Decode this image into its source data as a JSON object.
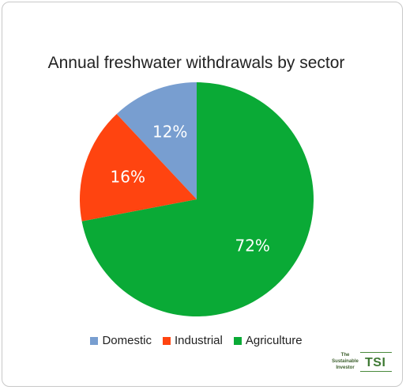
{
  "chart_data": {
    "type": "pie",
    "title": "Annual freshwater withdrawals by sector",
    "slices": [
      {
        "name": "Domestic",
        "value": 12,
        "label": "12%",
        "color": "#789ed0"
      },
      {
        "name": "Industrial",
        "value": 16,
        "label": "16%",
        "color": "#ff4410"
      },
      {
        "name": "Agriculture",
        "value": 72,
        "label": "72%",
        "color": "#0aaa36"
      }
    ],
    "legend": [
      {
        "label": "Domestic",
        "color": "#789ed0"
      },
      {
        "label": "Industrial",
        "color": "#ff4410"
      },
      {
        "label": "Agriculture",
        "color": "#0aaa36"
      }
    ],
    "legend_position": "bottom"
  },
  "logo": {
    "small_text": "The Sustainable Investor",
    "big_text": "TSI"
  }
}
